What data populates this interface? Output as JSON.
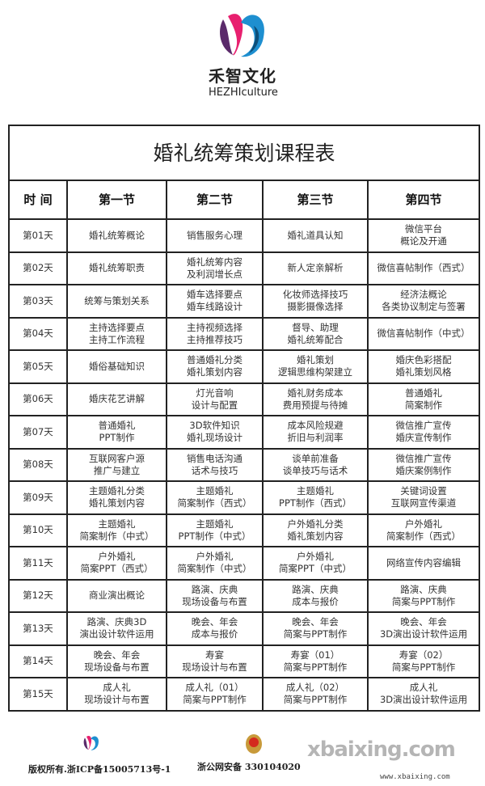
{
  "brand": {
    "name_cn": "禾智文化",
    "name_en": "HEZHIculture"
  },
  "table": {
    "title": "婚礼统筹策划课程表",
    "headers": [
      "时 间",
      "第一节",
      "第二节",
      "第三节",
      "第四节"
    ],
    "rows": [
      {
        "day": "第01天",
        "cells": [
          [
            "婚礼统筹概论"
          ],
          [
            "销售服务心理"
          ],
          [
            "婚礼道具认知"
          ],
          [
            "微信平台",
            "概论及开通"
          ]
        ]
      },
      {
        "day": "第02天",
        "cells": [
          [
            "婚礼统筹职责"
          ],
          [
            "婚礼统筹内容",
            "及利润增长点"
          ],
          [
            "新人定亲解析"
          ],
          [
            "微信喜帖制作（西式）"
          ]
        ]
      },
      {
        "day": "第03天",
        "cells": [
          [
            "统筹与策划关系"
          ],
          [
            "婚车选择要点",
            "婚车线路设计"
          ],
          [
            "化妆师选择技巧",
            "摄影摄像选择"
          ],
          [
            "经济法概论",
            "各类协议制定与签署"
          ]
        ]
      },
      {
        "day": "第04天",
        "cells": [
          [
            "主持选择要点",
            "主持工作流程"
          ],
          [
            "主持视频选择",
            "主持推荐技巧"
          ],
          [
            "督导、助理",
            "婚礼统筹配合"
          ],
          [
            "微信喜帖制作（中式）"
          ]
        ]
      },
      {
        "day": "第05天",
        "cells": [
          [
            "婚俗基础知识"
          ],
          [
            "普通婚礼分类",
            "婚礼策划内容"
          ],
          [
            "婚礼策划",
            "逻辑思维构架建立"
          ],
          [
            "婚庆色彩搭配",
            "婚礼策划风格"
          ]
        ]
      },
      {
        "day": "第06天",
        "cells": [
          [
            "婚庆花艺讲解"
          ],
          [
            "灯光音响",
            "设计与配置"
          ],
          [
            "婚礼财务成本",
            "费用预提与待摊"
          ],
          [
            "普通婚礼",
            "简案制作"
          ]
        ]
      },
      {
        "day": "第07天",
        "cells": [
          [
            "普通婚礼",
            "PPT制作"
          ],
          [
            "3D软件知识",
            "婚礼现场设计"
          ],
          [
            "成本风险规避",
            "折旧与利润率"
          ],
          [
            "微信推广宣传",
            "婚庆宣传制作"
          ]
        ]
      },
      {
        "day": "第08天",
        "cells": [
          [
            "互联网客户源",
            "推广与建立"
          ],
          [
            "销售电话沟通",
            "话术与技巧"
          ],
          [
            "谈单前准备",
            "谈单技巧与话术"
          ],
          [
            "微信推广宣传",
            "婚庆案例制作"
          ]
        ]
      },
      {
        "day": "第09天",
        "cells": [
          [
            "主题婚礼分类",
            "婚礼策划内容"
          ],
          [
            "主题婚礼",
            "简案制作（西式）"
          ],
          [
            "主题婚礼",
            "PPT制作（西式）"
          ],
          [
            "关键词设置",
            "互联网宣传渠道"
          ]
        ]
      },
      {
        "day": "第10天",
        "cells": [
          [
            "主题婚礼",
            "简案制作（中式）"
          ],
          [
            "主题婚礼",
            "PPT制作（中式）"
          ],
          [
            "户外婚礼分类",
            "婚礼策划内容"
          ],
          [
            "户外婚礼",
            "简案制作（西式）"
          ]
        ]
      },
      {
        "day": "第11天",
        "cells": [
          [
            "户外婚礼",
            "简案PPT（西式）"
          ],
          [
            "户外婚礼",
            "简案制作（中式）"
          ],
          [
            "户外婚礼",
            "简案PPT（中式）"
          ],
          [
            "网络宣传内容编辑"
          ]
        ]
      },
      {
        "day": "第12天",
        "cells": [
          [
            "商业演出概论"
          ],
          [
            "路演、庆典",
            "现场设备与布置"
          ],
          [
            "路演、庆典",
            "成本与报价"
          ],
          [
            "路演、庆典",
            "简案与PPT制作"
          ]
        ]
      },
      {
        "day": "第13天",
        "cells": [
          [
            "路演、庆典3D",
            "演出设计软件运用"
          ],
          [
            "晚会、年会",
            "成本与报价"
          ],
          [
            "晚会、年会",
            "简案与PPT制作"
          ],
          [
            "晚会、年会",
            "3D演出设计软件运用"
          ]
        ]
      },
      {
        "day": "第14天",
        "cells": [
          [
            "晚会、年会",
            "现场设备与布置"
          ],
          [
            "寿宴",
            "现场设计与布置"
          ],
          [
            "寿宴（01）",
            "简案与PPT制作"
          ],
          [
            "寿宴（02）",
            "简案与PPT制作"
          ]
        ]
      },
      {
        "day": "第15天",
        "cells": [
          [
            "成人礼",
            "现场设计与布置"
          ],
          [
            "成人礼（01）",
            "简案与PPT制作"
          ],
          [
            "成人礼（02）",
            "简案与PPT制作"
          ],
          [
            "成人礼",
            "3D演出设计软件运用"
          ]
        ]
      }
    ]
  },
  "footer": {
    "copyright": "版权所有.浙ICP备15005713号-1",
    "police": "浙公网安备 330104020",
    "watermark": "xbaixing.com",
    "watermark_url": "www.xbaixing.com"
  },
  "colors": {
    "logo_pink": "#e8206f",
    "logo_blue": "#1e8fd0",
    "logo_purple": "#5a2a6a"
  }
}
